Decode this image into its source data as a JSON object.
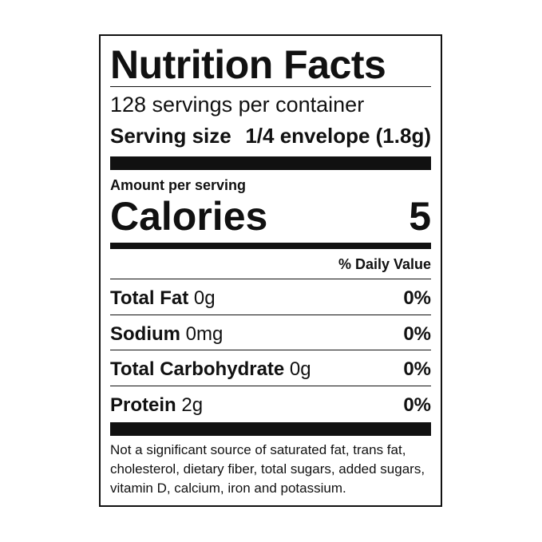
{
  "title": "Nutrition Facts",
  "servings": "128 servings per container",
  "serving_size": {
    "label": "Serving size",
    "value": "1/4 envelope (1.8g)"
  },
  "amount_per_serving": "Amount per serving",
  "calories": {
    "label": "Calories",
    "value": "5"
  },
  "daily_value_header": "% Daily Value",
  "rows": [
    {
      "name": "Total Fat",
      "amount": "0g",
      "daily_value": "0%"
    },
    {
      "name": "Sodium",
      "amount": "0mg",
      "daily_value": "0%"
    },
    {
      "name": "Total Carbohydrate",
      "amount": "0g",
      "daily_value": "0%"
    },
    {
      "name": "Protein",
      "amount": "2g",
      "daily_value": "0%"
    }
  ],
  "footnote": "Not a significant source of saturated fat, trans fat, cholesterol, dietary fiber, total sugars, added sugars, vitamin D, calcium, iron and potassium."
}
